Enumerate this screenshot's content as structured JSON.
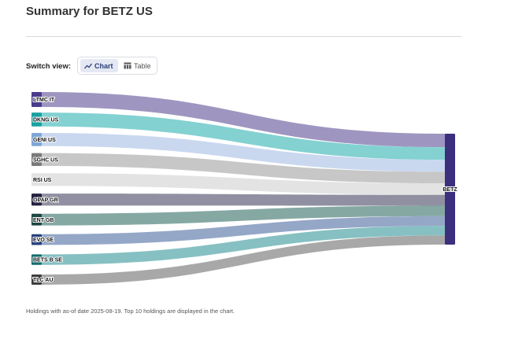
{
  "page": {
    "title": "Summary for BETZ US",
    "footnote": "Holdings with as-of date 2025-08-19. Top 10 holdings are displayed in the chart."
  },
  "switch_view": {
    "label": "Switch view:",
    "options": [
      {
        "label": "Chart",
        "icon": "line-chart-icon",
        "selected": true
      },
      {
        "label": "Table",
        "icon": "table-icon",
        "selected": false
      }
    ]
  },
  "chart_data": {
    "type": "sankey",
    "target": "BETZ",
    "target_color": "#3b2f7e",
    "sources": [
      {
        "name": "LTMC IT",
        "flow_color": "#9990bd",
        "node_color": "#4a3b8c",
        "weight": 1.0
      },
      {
        "name": "DKNG US",
        "flow_color": "#7ccfcf",
        "node_color": "#1aa1a1",
        "weight": 0.93
      },
      {
        "name": "GENI US",
        "flow_color": "#c6d6ee",
        "node_color": "#7fa6d6",
        "weight": 0.88
      },
      {
        "name": "SGHC US",
        "flow_color": "#c4c4c4",
        "node_color": "#7a7a7a",
        "weight": 0.86
      },
      {
        "name": "RSI US",
        "flow_color": "#e2e2e2",
        "node_color": "#e2e2e2",
        "weight": 0.85
      },
      {
        "name": "OPAP GR",
        "flow_color": "#8b8a9d",
        "node_color": "#23213d",
        "weight": 0.8
      },
      {
        "name": "ENT GB",
        "flow_color": "#7ea39e",
        "node_color": "#1d4742",
        "weight": 0.78
      },
      {
        "name": "EVO SE",
        "flow_color": "#8fa2c4",
        "node_color": "#28427a",
        "weight": 0.72
      },
      {
        "name": "BETS B SE",
        "flow_color": "#7fbdbf",
        "node_color": "#146b6e",
        "weight": 0.7
      },
      {
        "name": "TLC AU",
        "flow_color": "#a3a3a3",
        "node_color": "#3c3c3c",
        "weight": 0.68
      }
    ]
  }
}
